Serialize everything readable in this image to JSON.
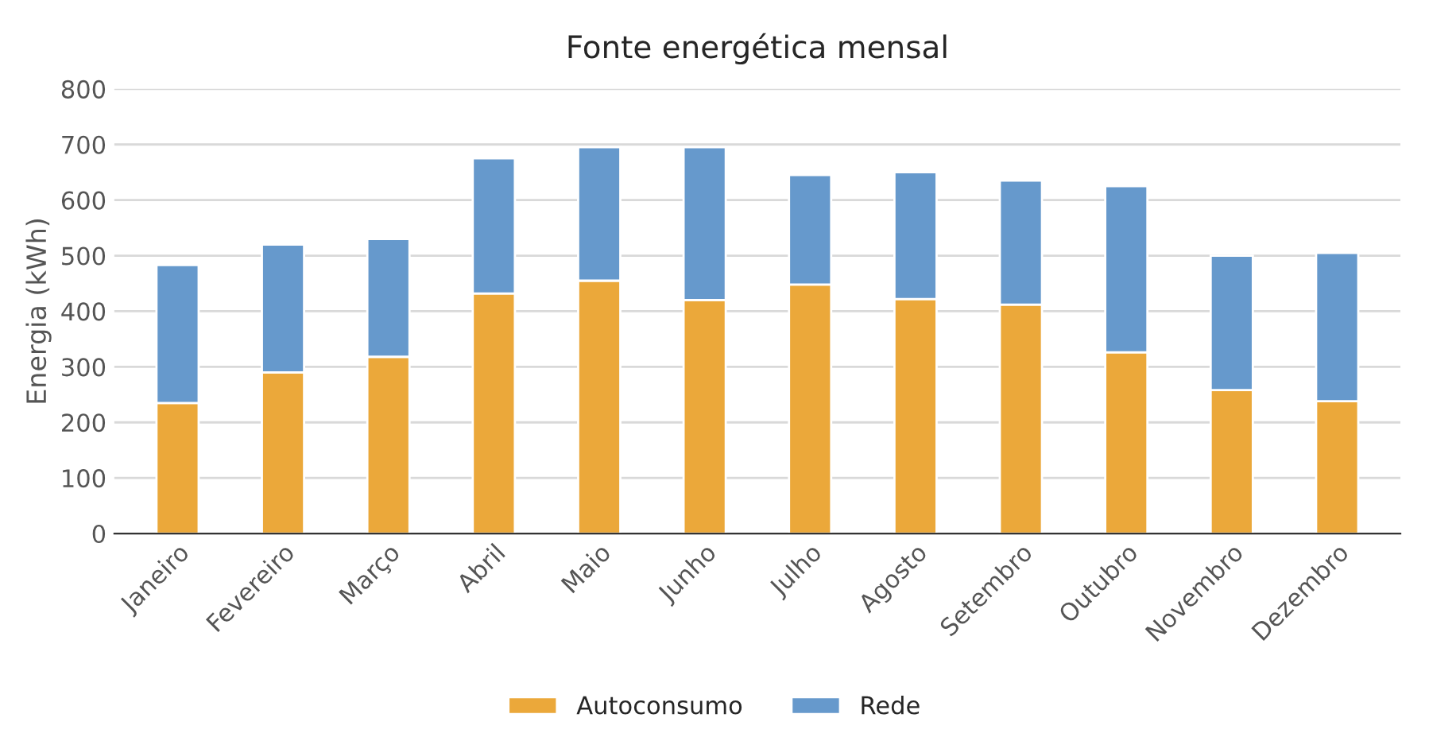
{
  "chart_data": {
    "type": "bar",
    "title": "Fonte energética mensal",
    "ylabel": "Energia (kWh)",
    "categories": [
      "Janeiro",
      "Fevereiro",
      "Março",
      "Abril",
      "Maio",
      "Junho",
      "Julho",
      "Agosto",
      "Setembro",
      "Outubro",
      "Novembro",
      "Dezembro"
    ],
    "stacked": true,
    "series": [
      {
        "name": "Autoconsumo",
        "color": "#eba83a",
        "values": [
          235,
          290,
          318,
          432,
          455,
          420,
          448,
          422,
          412,
          326,
          258,
          238
        ]
      },
      {
        "name": "Rede",
        "color": "#6699cc",
        "values": [
          248,
          230,
          212,
          243,
          240,
          275,
          197,
          228,
          223,
          299,
          242,
          267
        ]
      }
    ],
    "ylim": [
      0,
      800
    ],
    "yticks": [
      0,
      100,
      200,
      300,
      400,
      500,
      600,
      700,
      800
    ],
    "grid": "y",
    "legend": "bottom"
  }
}
